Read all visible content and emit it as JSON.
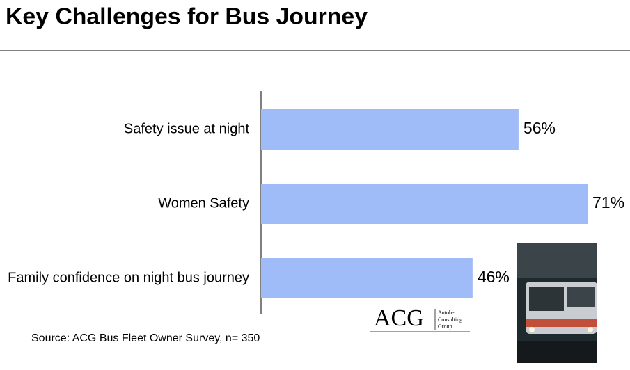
{
  "chart_data": {
    "type": "bar",
    "orientation": "horizontal",
    "title": "Key Challenges for Bus Journey",
    "categories": [
      "Safety issue at night",
      "Women Safety",
      "Family confidence on night bus journey"
    ],
    "values": [
      56,
      71,
      46
    ],
    "value_labels": [
      "56%",
      "71%",
      "46%"
    ],
    "color": "#a0bcf8",
    "xlim": [
      0,
      71
    ],
    "source": "Source: ACG Bus Fleet Owner Survey, n= 350"
  },
  "logo": {
    "mark": "ACG",
    "name_lines": [
      "Autobei",
      "Consulting",
      "Group"
    ]
  }
}
